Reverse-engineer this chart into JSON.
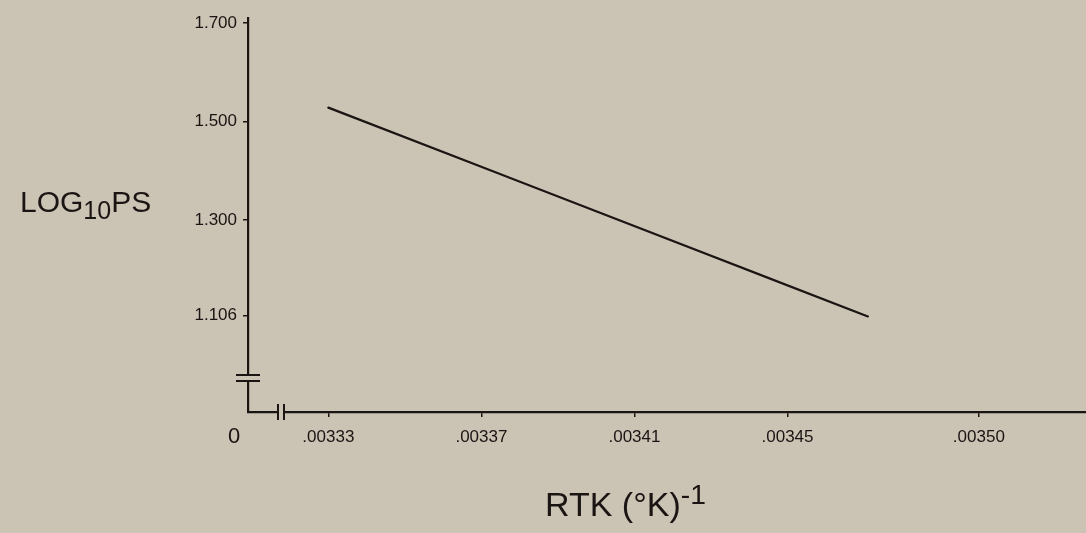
{
  "chart_data": {
    "type": "line",
    "xlabel": "RTK (°K)$^{-1}$",
    "ylabel": "LOG$_{10}$PS",
    "x": [
      0.00333,
      0.003471
    ],
    "series": [
      {
        "color": "#1a1412",
        "values": [
          1.528,
          1.104
        ]
      }
    ],
    "xlim": [
      0.003309,
      0.003528
    ],
    "xticks": [
      {
        "value": 0.00333,
        "label": ".00333"
      },
      {
        "value": 0.00337,
        "label": ".00337"
      },
      {
        "value": 0.00341,
        "label": ".00341"
      },
      {
        "value": 0.00345,
        "label": ".00345"
      },
      {
        "value": 0.0035,
        "label": ".00350"
      }
    ],
    "ylim": [
      0.91,
      1.71
    ],
    "yticks": [
      {
        "value": 1.106,
        "label": "1.106"
      },
      {
        "value": 1.3,
        "label": "1.300"
      },
      {
        "value": 1.5,
        "label": "1.500"
      },
      {
        "value": 1.7,
        "label": "1.700"
      }
    ],
    "annotations": [
      "0"
    ],
    "grid": false,
    "legend": false,
    "marker": "none",
    "line_style": "solid"
  }
}
